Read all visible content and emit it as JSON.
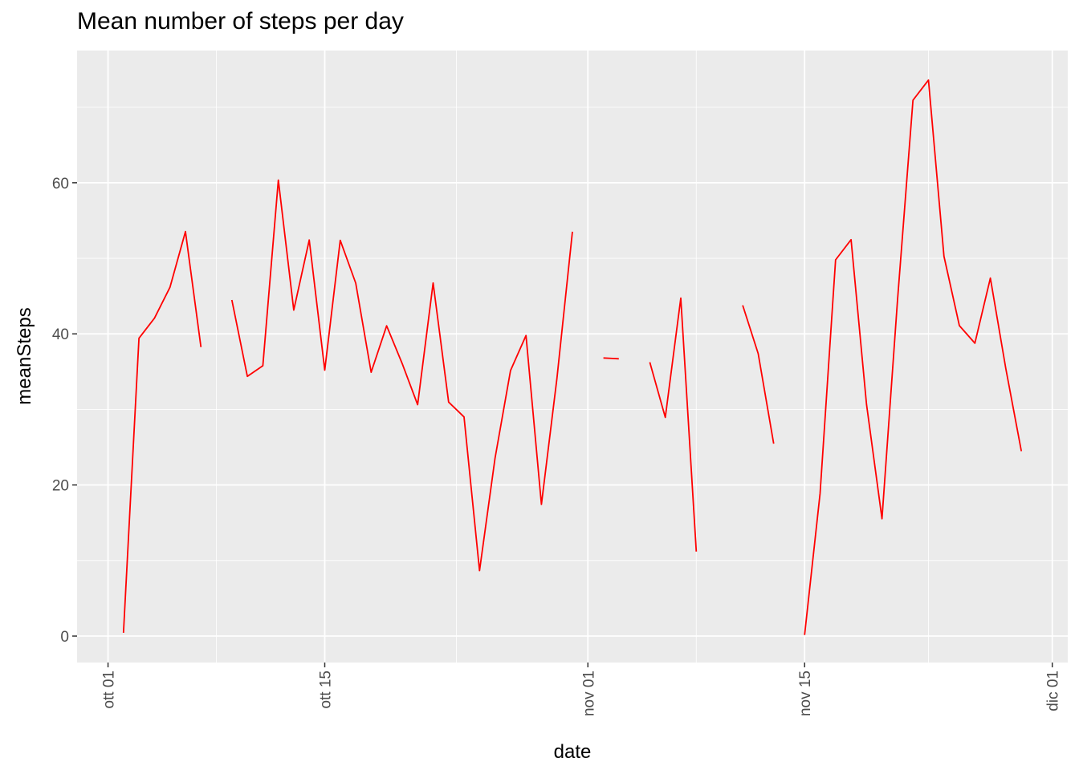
{
  "chart_data": {
    "type": "line",
    "title": "Mean number of steps per day",
    "xlabel": "date",
    "ylabel": "meanSteps",
    "x_range": [
      "2012-09-29",
      "2012-12-02"
    ],
    "ylim": [
      -3.5,
      77.5
    ],
    "y_ticks": [
      0,
      20,
      40,
      60
    ],
    "x_ticks": [
      {
        "date": "2012-10-01",
        "label": "ott 01"
      },
      {
        "date": "2012-10-15",
        "label": "ott 15"
      },
      {
        "date": "2012-11-01",
        "label": "nov 01"
      },
      {
        "date": "2012-11-15",
        "label": "nov 15"
      },
      {
        "date": "2012-12-01",
        "label": "dic 01"
      }
    ],
    "grid": true,
    "line_color": "#ff0000",
    "panel_color": "#ebebeb",
    "series": [
      {
        "x": [
          "2012-10-01",
          "2012-10-02",
          "2012-10-03",
          "2012-10-04",
          "2012-10-05",
          "2012-10-06",
          "2012-10-07",
          "2012-10-08",
          "2012-10-09",
          "2012-10-10",
          "2012-10-11",
          "2012-10-12",
          "2012-10-13",
          "2012-10-14",
          "2012-10-15",
          "2012-10-16",
          "2012-10-17",
          "2012-10-18",
          "2012-10-19",
          "2012-10-20",
          "2012-10-21",
          "2012-10-22",
          "2012-10-23",
          "2012-10-24",
          "2012-10-25",
          "2012-10-26",
          "2012-10-27",
          "2012-10-28",
          "2012-10-29",
          "2012-10-30",
          "2012-10-31",
          "2012-11-01",
          "2012-11-02",
          "2012-11-03",
          "2012-11-04",
          "2012-11-05",
          "2012-11-06",
          "2012-11-07",
          "2012-11-08",
          "2012-11-09",
          "2012-11-10",
          "2012-11-11",
          "2012-11-12",
          "2012-11-13",
          "2012-11-14",
          "2012-11-15",
          "2012-11-16",
          "2012-11-17",
          "2012-11-18",
          "2012-11-19",
          "2012-11-20",
          "2012-11-21",
          "2012-11-22",
          "2012-11-23",
          "2012-11-24",
          "2012-11-25",
          "2012-11-26",
          "2012-11-27",
          "2012-11-28",
          "2012-11-29",
          "2012-11-30"
        ],
        "values": [
          null,
          0.44,
          39.42,
          42.07,
          46.16,
          53.54,
          38.25,
          null,
          44.48,
          34.38,
          35.78,
          60.35,
          43.15,
          52.42,
          35.2,
          52.38,
          46.71,
          34.92,
          41.07,
          36.09,
          30.63,
          46.74,
          30.97,
          29.01,
          8.65,
          23.53,
          35.14,
          39.78,
          17.42,
          34.09,
          53.52,
          null,
          36.81,
          36.7,
          null,
          36.25,
          28.94,
          44.73,
          11.18,
          null,
          null,
          43.78,
          37.38,
          25.47,
          null,
          0.14,
          18.89,
          49.79,
          52.47,
          30.7,
          15.53,
          44.4,
          70.93,
          73.59,
          50.27,
          41.09,
          38.76,
          47.38,
          35.36,
          24.47,
          null
        ]
      }
    ]
  }
}
